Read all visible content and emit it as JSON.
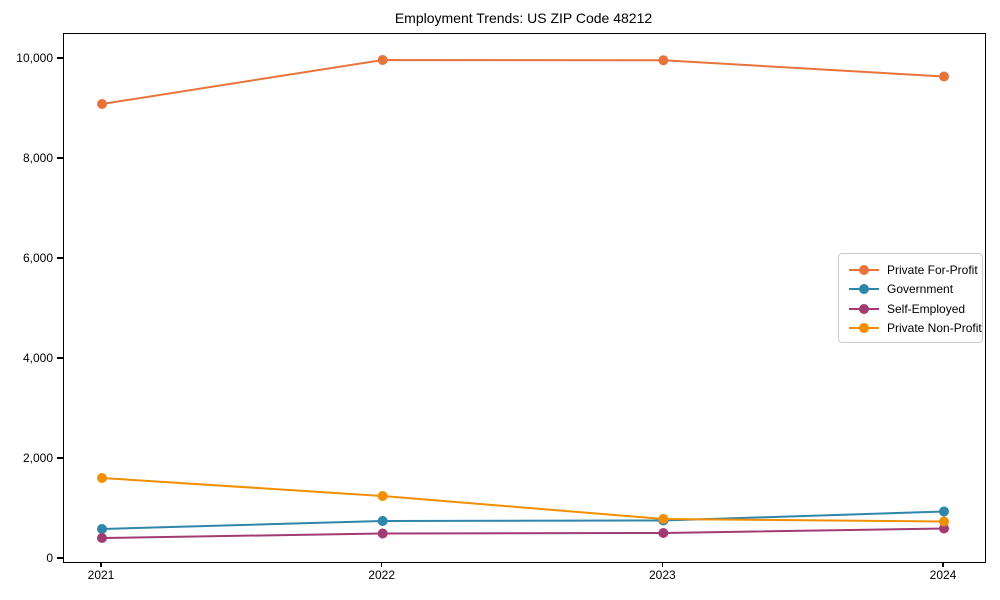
{
  "title": "Employment Trends: US ZIP Code 48212",
  "chart_data": {
    "type": "line",
    "categories": [
      "2021",
      "2022",
      "2023",
      "2024"
    ],
    "series": [
      {
        "name": "Private For-Profit",
        "color": "#E8743B",
        "values": [
          9100,
          9980,
          9975,
          9650
        ]
      },
      {
        "name": "Government",
        "color": "#2E86AB",
        "values": [
          600,
          760,
          770,
          950
        ]
      },
      {
        "name": "Self-Employed",
        "color": "#A23B72",
        "values": [
          420,
          510,
          520,
          610
        ]
      },
      {
        "name": "Private Non-Profit",
        "color": "#F18F01",
        "values": [
          1620,
          1260,
          800,
          750
        ]
      }
    ],
    "xlabel": "",
    "ylabel": "",
    "ylim": [
      -60,
      10500
    ],
    "yticks": [
      {
        "value": 0,
        "label": "0"
      },
      {
        "value": 2000,
        "label": "2,000"
      },
      {
        "value": 4000,
        "label": "4,000"
      },
      {
        "value": 6000,
        "label": "6,000"
      },
      {
        "value": 8000,
        "label": "8,000"
      },
      {
        "value": 10000,
        "label": "10,000"
      }
    ],
    "grid": false,
    "legend_position": "center-right",
    "marker": "circle",
    "line_width": 2,
    "marker_radius": 5
  }
}
